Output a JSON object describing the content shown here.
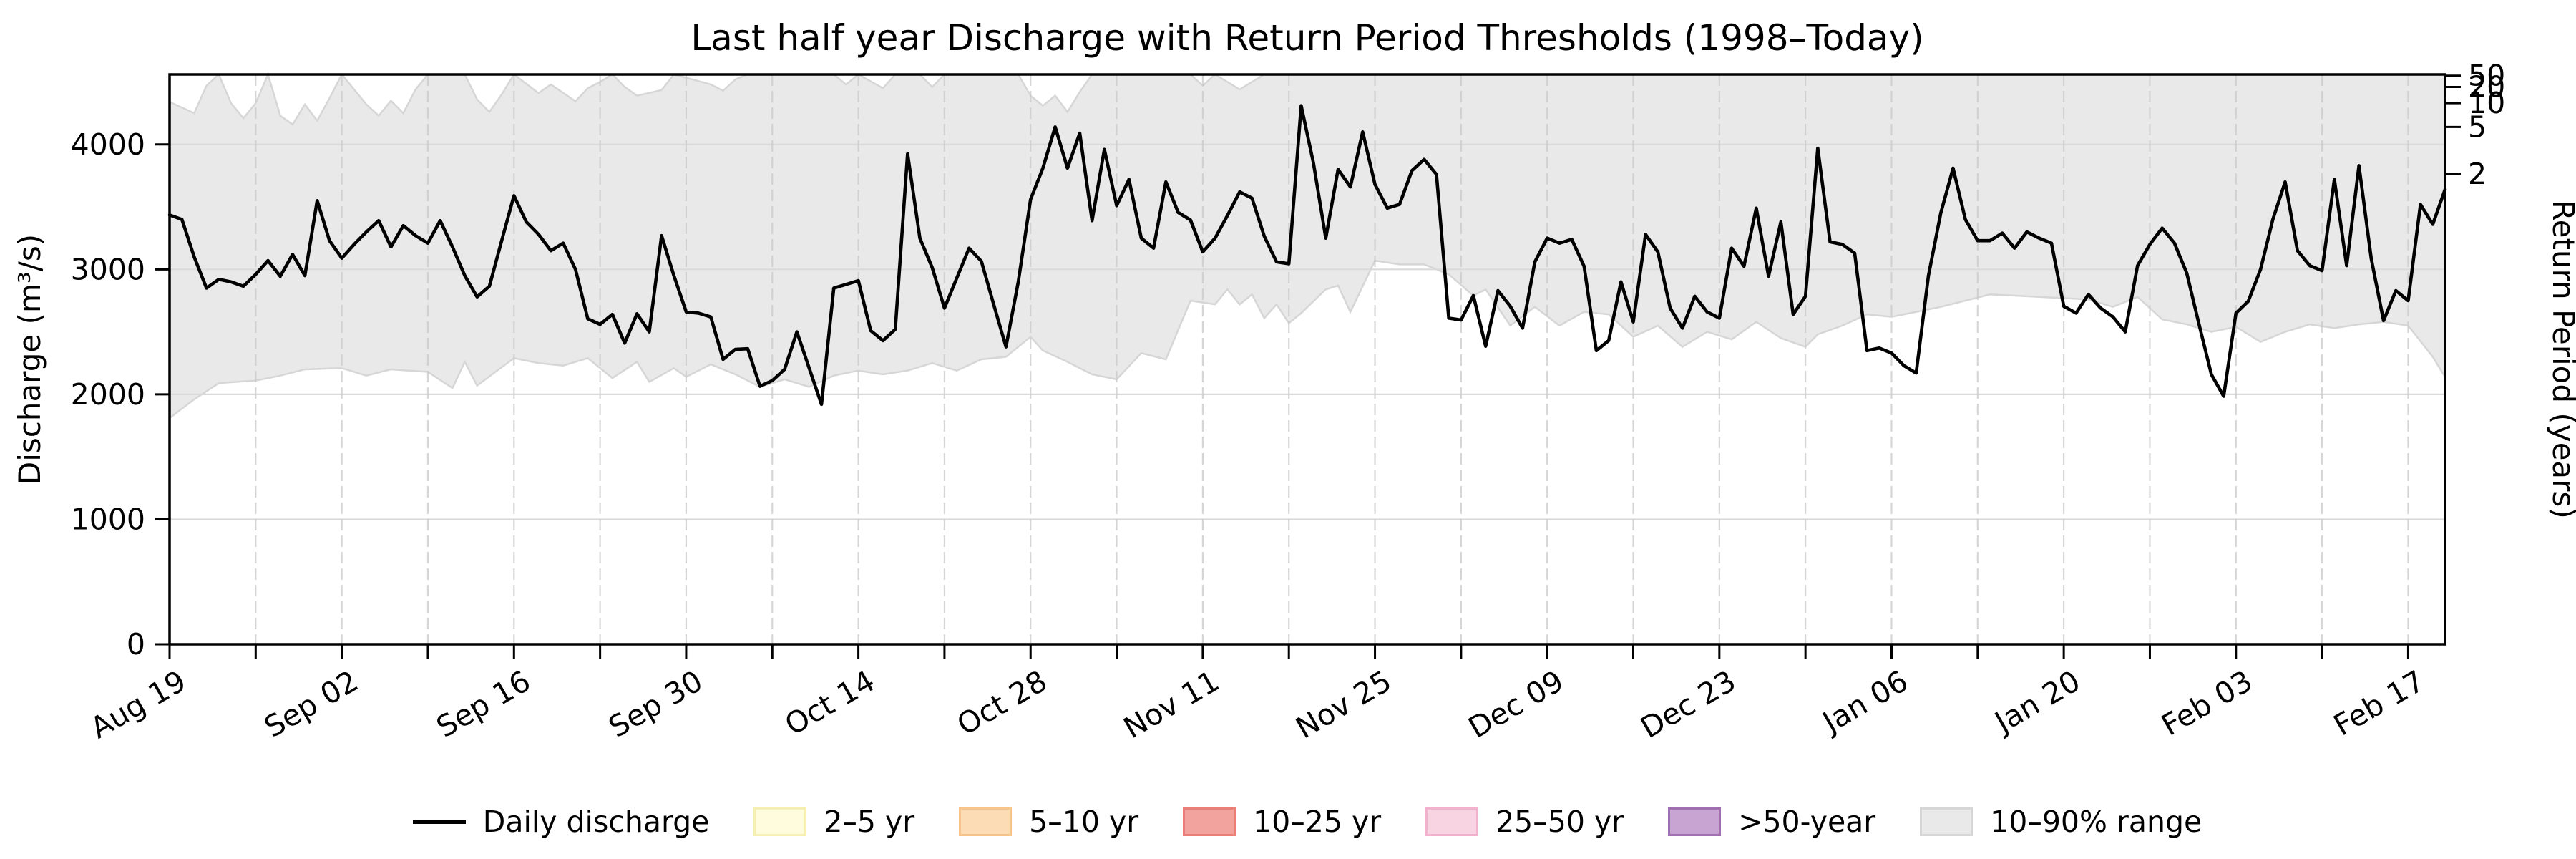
{
  "title": "Last half year Discharge with Return Period Thresholds (1998–Today)",
  "colors": {
    "line": "#000000",
    "band_fill": "#e9e9e9",
    "band_edge": "#d6d6d6",
    "grid_h": "#dadada",
    "grid_v": "#c9c9c9",
    "spine": "#000000"
  },
  "axes": {
    "y_left": {
      "label": "Discharge (m³/s)",
      "ticks": [
        0,
        1000,
        2000,
        3000,
        4000
      ],
      "range": [
        0,
        4560
      ]
    },
    "y_right": {
      "label": "Return Period (years)",
      "ticks": [
        {
          "label": "50",
          "value": 4550
        },
        {
          "label": "20",
          "value": 4460
        },
        {
          "label": "10",
          "value": 4330
        },
        {
          "label": "5",
          "value": 4140
        },
        {
          "label": "2",
          "value": 3765
        }
      ]
    },
    "x": {
      "range_days": [
        0,
        185
      ],
      "minor_tick_every_days": 7,
      "major_ticks": [
        {
          "day": 0,
          "label": "Aug 19"
        },
        {
          "day": 14,
          "label": "Sep 02"
        },
        {
          "day": 28,
          "label": "Sep 16"
        },
        {
          "day": 42,
          "label": "Sep 30"
        },
        {
          "day": 56,
          "label": "Oct 14"
        },
        {
          "day": 70,
          "label": "Oct 28"
        },
        {
          "day": 84,
          "label": "Nov 11"
        },
        {
          "day": 98,
          "label": "Nov 25"
        },
        {
          "day": 112,
          "label": "Dec 09"
        },
        {
          "day": 126,
          "label": "Dec 23"
        },
        {
          "day": 140,
          "label": "Jan 06"
        },
        {
          "day": 154,
          "label": "Jan 20"
        },
        {
          "day": 168,
          "label": "Feb 03"
        },
        {
          "day": 182,
          "label": "Feb 17"
        }
      ]
    }
  },
  "legend": {
    "items": [
      {
        "label": "Daily discharge",
        "type": "line",
        "color": "#000000"
      },
      {
        "label": "2–5 yr",
        "type": "patch",
        "fill": "#fefcdc",
        "edge": "#f5efb4"
      },
      {
        "label": "5–10 yr",
        "type": "patch",
        "fill": "#fbdcb5",
        "edge": "#f7c48c"
      },
      {
        "label": "10–25 yr",
        "type": "patch",
        "fill": "#f2a39e",
        "edge": "#ea7f78"
      },
      {
        "label": "25–50 yr",
        "type": "patch",
        "fill": "#f8d4e2",
        "edge": "#f2b1cc"
      },
      {
        "label": ">50-year",
        "type": "patch",
        "fill": "#c8a4d2",
        "edge": "#a06fb2"
      },
      {
        "label": "10–90% range",
        "type": "patch",
        "fill": "#e9e9e9",
        "edge": "#d6d6d6"
      }
    ]
  },
  "chart_data": {
    "type": "line",
    "title": "Last half year Discharge with Return Period Thresholds (1998–Today)",
    "xlabel": "",
    "ylabel": "Discharge (m³/s)",
    "ylabel_right": "Return Period (years)",
    "ylim": [
      0,
      4560
    ],
    "x_unit": "days since Aug 19",
    "x_tick_labels": [
      "Aug 19",
      "Sep 02",
      "Sep 16",
      "Sep 30",
      "Oct 14",
      "Oct 28",
      "Nov 11",
      "Nov 25",
      "Dec 09",
      "Dec 23",
      "Jan 06",
      "Jan 20",
      "Feb 03",
      "Feb 17"
    ],
    "grid": true,
    "legend_position": "bottom",
    "return_period_thresholds_m3s": [
      {
        "return_period_years": 2,
        "discharge": 3765
      },
      {
        "return_period_years": 5,
        "discharge": 4140
      },
      {
        "return_period_years": 10,
        "discharge": 4330
      },
      {
        "return_period_years": 20,
        "discharge": 4460
      },
      {
        "return_period_years": 50,
        "discharge": 4550
      }
    ],
    "series": [
      {
        "name": "Daily discharge",
        "unit": "m³/s",
        "sampling": "daily",
        "start_day": 0,
        "values": [
          3435,
          3400,
          3100,
          2850,
          2920,
          2900,
          2865,
          2960,
          3070,
          2945,
          3120,
          2950,
          3550,
          3230,
          3090,
          3200,
          3300,
          3390,
          3180,
          3350,
          3270,
          3210,
          3390,
          3180,
          2950,
          2780,
          2865,
          3230,
          3590,
          3380,
          3280,
          3150,
          3210,
          3000,
          2605,
          2560,
          2640,
          2410,
          2645,
          2500,
          3270,
          2950,
          2660,
          2650,
          2620,
          2280,
          2360,
          2365,
          2065,
          2110,
          2200,
          2500,
          2210,
          1920,
          2850,
          2880,
          2910,
          2510,
          2430,
          2520,
          3925,
          3250,
          3015,
          2690,
          2930,
          3170,
          3065,
          2720,
          2380,
          2900,
          3560,
          3810,
          4140,
          3810,
          4090,
          3390,
          3960,
          3510,
          3720,
          3250,
          3170,
          3700,
          3455,
          3395,
          3140,
          3250,
          3430,
          3620,
          3570,
          3265,
          3060,
          3045,
          4310,
          3850,
          3250,
          3800,
          3660,
          4100,
          3680,
          3490,
          3520,
          3790,
          3880,
          3760,
          2610,
          2595,
          2790,
          2385,
          2830,
          2705,
          2530,
          3060,
          3250,
          3210,
          3240,
          3025,
          2350,
          2430,
          2900,
          2580,
          3280,
          3140,
          2690,
          2530,
          2785,
          2660,
          2610,
          3170,
          3025,
          3490,
          2945,
          3380,
          2640,
          2785,
          3970,
          3220,
          3200,
          3130,
          2350,
          2370,
          2330,
          2230,
          2170,
          2950,
          3450,
          3810,
          3400,
          3230,
          3230,
          3290,
          3170,
          3300,
          3250,
          3210,
          2705,
          2650,
          2800,
          2690,
          2620,
          2500,
          3030,
          3200,
          3330,
          3210,
          2970,
          2560,
          2160,
          1985,
          2650,
          2745,
          3000,
          3400,
          3700,
          3150,
          3030,
          2990,
          3720,
          3030,
          3830,
          3085,
          2590,
          2830,
          2750,
          3520,
          3360,
          3640
        ]
      },
      {
        "name": "10–90% range upper (clipped at 4560)",
        "unit": "m³/s",
        "points": [
          [
            0,
            4340
          ],
          [
            2,
            4250
          ],
          [
            3,
            4470
          ],
          [
            4,
            4560
          ],
          [
            5,
            4330
          ],
          [
            6,
            4210
          ],
          [
            7,
            4330
          ],
          [
            8,
            4560
          ],
          [
            9,
            4230
          ],
          [
            10,
            4160
          ],
          [
            11,
            4320
          ],
          [
            12,
            4190
          ],
          [
            13,
            4370
          ],
          [
            14,
            4560
          ],
          [
            16,
            4320
          ],
          [
            17,
            4230
          ],
          [
            18,
            4350
          ],
          [
            19,
            4250
          ],
          [
            20,
            4440
          ],
          [
            21,
            4560
          ],
          [
            24,
            4560
          ],
          [
            25,
            4360
          ],
          [
            26,
            4260
          ],
          [
            27,
            4400
          ],
          [
            28,
            4560
          ],
          [
            30,
            4410
          ],
          [
            31,
            4480
          ],
          [
            33,
            4345
          ],
          [
            34,
            4450
          ],
          [
            35,
            4500
          ],
          [
            36,
            4560
          ],
          [
            37,
            4460
          ],
          [
            38,
            4390
          ],
          [
            40,
            4435
          ],
          [
            41,
            4560
          ],
          [
            44,
            4480
          ],
          [
            45,
            4430
          ],
          [
            46,
            4520
          ],
          [
            47,
            4560
          ],
          [
            54,
            4560
          ],
          [
            55,
            4480
          ],
          [
            56,
            4560
          ],
          [
            58,
            4450
          ],
          [
            59,
            4560
          ],
          [
            61,
            4560
          ],
          [
            62,
            4460
          ],
          [
            63,
            4560
          ],
          [
            69,
            4560
          ],
          [
            70,
            4390
          ],
          [
            71,
            4310
          ],
          [
            72,
            4390
          ],
          [
            73,
            4260
          ],
          [
            74,
            4420
          ],
          [
            75,
            4560
          ],
          [
            83,
            4560
          ],
          [
            84,
            4470
          ],
          [
            85,
            4560
          ],
          [
            86,
            4500
          ],
          [
            87,
            4440
          ],
          [
            88,
            4500
          ],
          [
            89,
            4560
          ],
          [
            185,
            4560
          ]
        ]
      },
      {
        "name": "10–90% range lower",
        "unit": "m³/s",
        "points": [
          [
            0,
            1810
          ],
          [
            2,
            1960
          ],
          [
            4,
            2090
          ],
          [
            7,
            2110
          ],
          [
            9,
            2150
          ],
          [
            11,
            2200
          ],
          [
            14,
            2210
          ],
          [
            16,
            2150
          ],
          [
            18,
            2200
          ],
          [
            21,
            2180
          ],
          [
            23,
            2050
          ],
          [
            24,
            2260
          ],
          [
            25,
            2070
          ],
          [
            28,
            2290
          ],
          [
            30,
            2250
          ],
          [
            32,
            2230
          ],
          [
            34,
            2290
          ],
          [
            36,
            2130
          ],
          [
            38,
            2260
          ],
          [
            39,
            2100
          ],
          [
            41,
            2210
          ],
          [
            42,
            2140
          ],
          [
            44,
            2240
          ],
          [
            46,
            2160
          ],
          [
            48,
            2060
          ],
          [
            50,
            2120
          ],
          [
            52,
            2060
          ],
          [
            54,
            2150
          ],
          [
            56,
            2190
          ],
          [
            58,
            2160
          ],
          [
            60,
            2190
          ],
          [
            62,
            2250
          ],
          [
            64,
            2190
          ],
          [
            66,
            2280
          ],
          [
            68,
            2300
          ],
          [
            70,
            2460
          ],
          [
            71,
            2350
          ],
          [
            73,
            2260
          ],
          [
            75,
            2160
          ],
          [
            77,
            2120
          ],
          [
            79,
            2330
          ],
          [
            81,
            2280
          ],
          [
            83,
            2750
          ],
          [
            85,
            2720
          ],
          [
            86,
            2840
          ],
          [
            87,
            2720
          ],
          [
            88,
            2800
          ],
          [
            89,
            2610
          ],
          [
            90,
            2720
          ],
          [
            91,
            2570
          ],
          [
            92,
            2650
          ],
          [
            94,
            2840
          ],
          [
            95,
            2870
          ],
          [
            96,
            2660
          ],
          [
            98,
            3070
          ],
          [
            100,
            3040
          ],
          [
            102,
            3040
          ],
          [
            104,
            2960
          ],
          [
            106,
            2790
          ],
          [
            107,
            2840
          ],
          [
            109,
            2550
          ],
          [
            111,
            2700
          ],
          [
            113,
            2550
          ],
          [
            115,
            2660
          ],
          [
            117,
            2640
          ],
          [
            119,
            2460
          ],
          [
            121,
            2550
          ],
          [
            123,
            2380
          ],
          [
            125,
            2500
          ],
          [
            127,
            2440
          ],
          [
            129,
            2580
          ],
          [
            131,
            2450
          ],
          [
            133,
            2380
          ],
          [
            134,
            2480
          ],
          [
            136,
            2550
          ],
          [
            138,
            2640
          ],
          [
            140,
            2620
          ],
          [
            144,
            2700
          ],
          [
            148,
            2800
          ],
          [
            152,
            2780
          ],
          [
            156,
            2760
          ],
          [
            158,
            2700
          ],
          [
            160,
            2780
          ],
          [
            162,
            2600
          ],
          [
            164,
            2560
          ],
          [
            166,
            2500
          ],
          [
            168,
            2540
          ],
          [
            170,
            2420
          ],
          [
            172,
            2500
          ],
          [
            174,
            2560
          ],
          [
            176,
            2530
          ],
          [
            178,
            2560
          ],
          [
            180,
            2580
          ],
          [
            182,
            2550
          ],
          [
            184,
            2300
          ],
          [
            185,
            2140
          ]
        ]
      }
    ]
  }
}
